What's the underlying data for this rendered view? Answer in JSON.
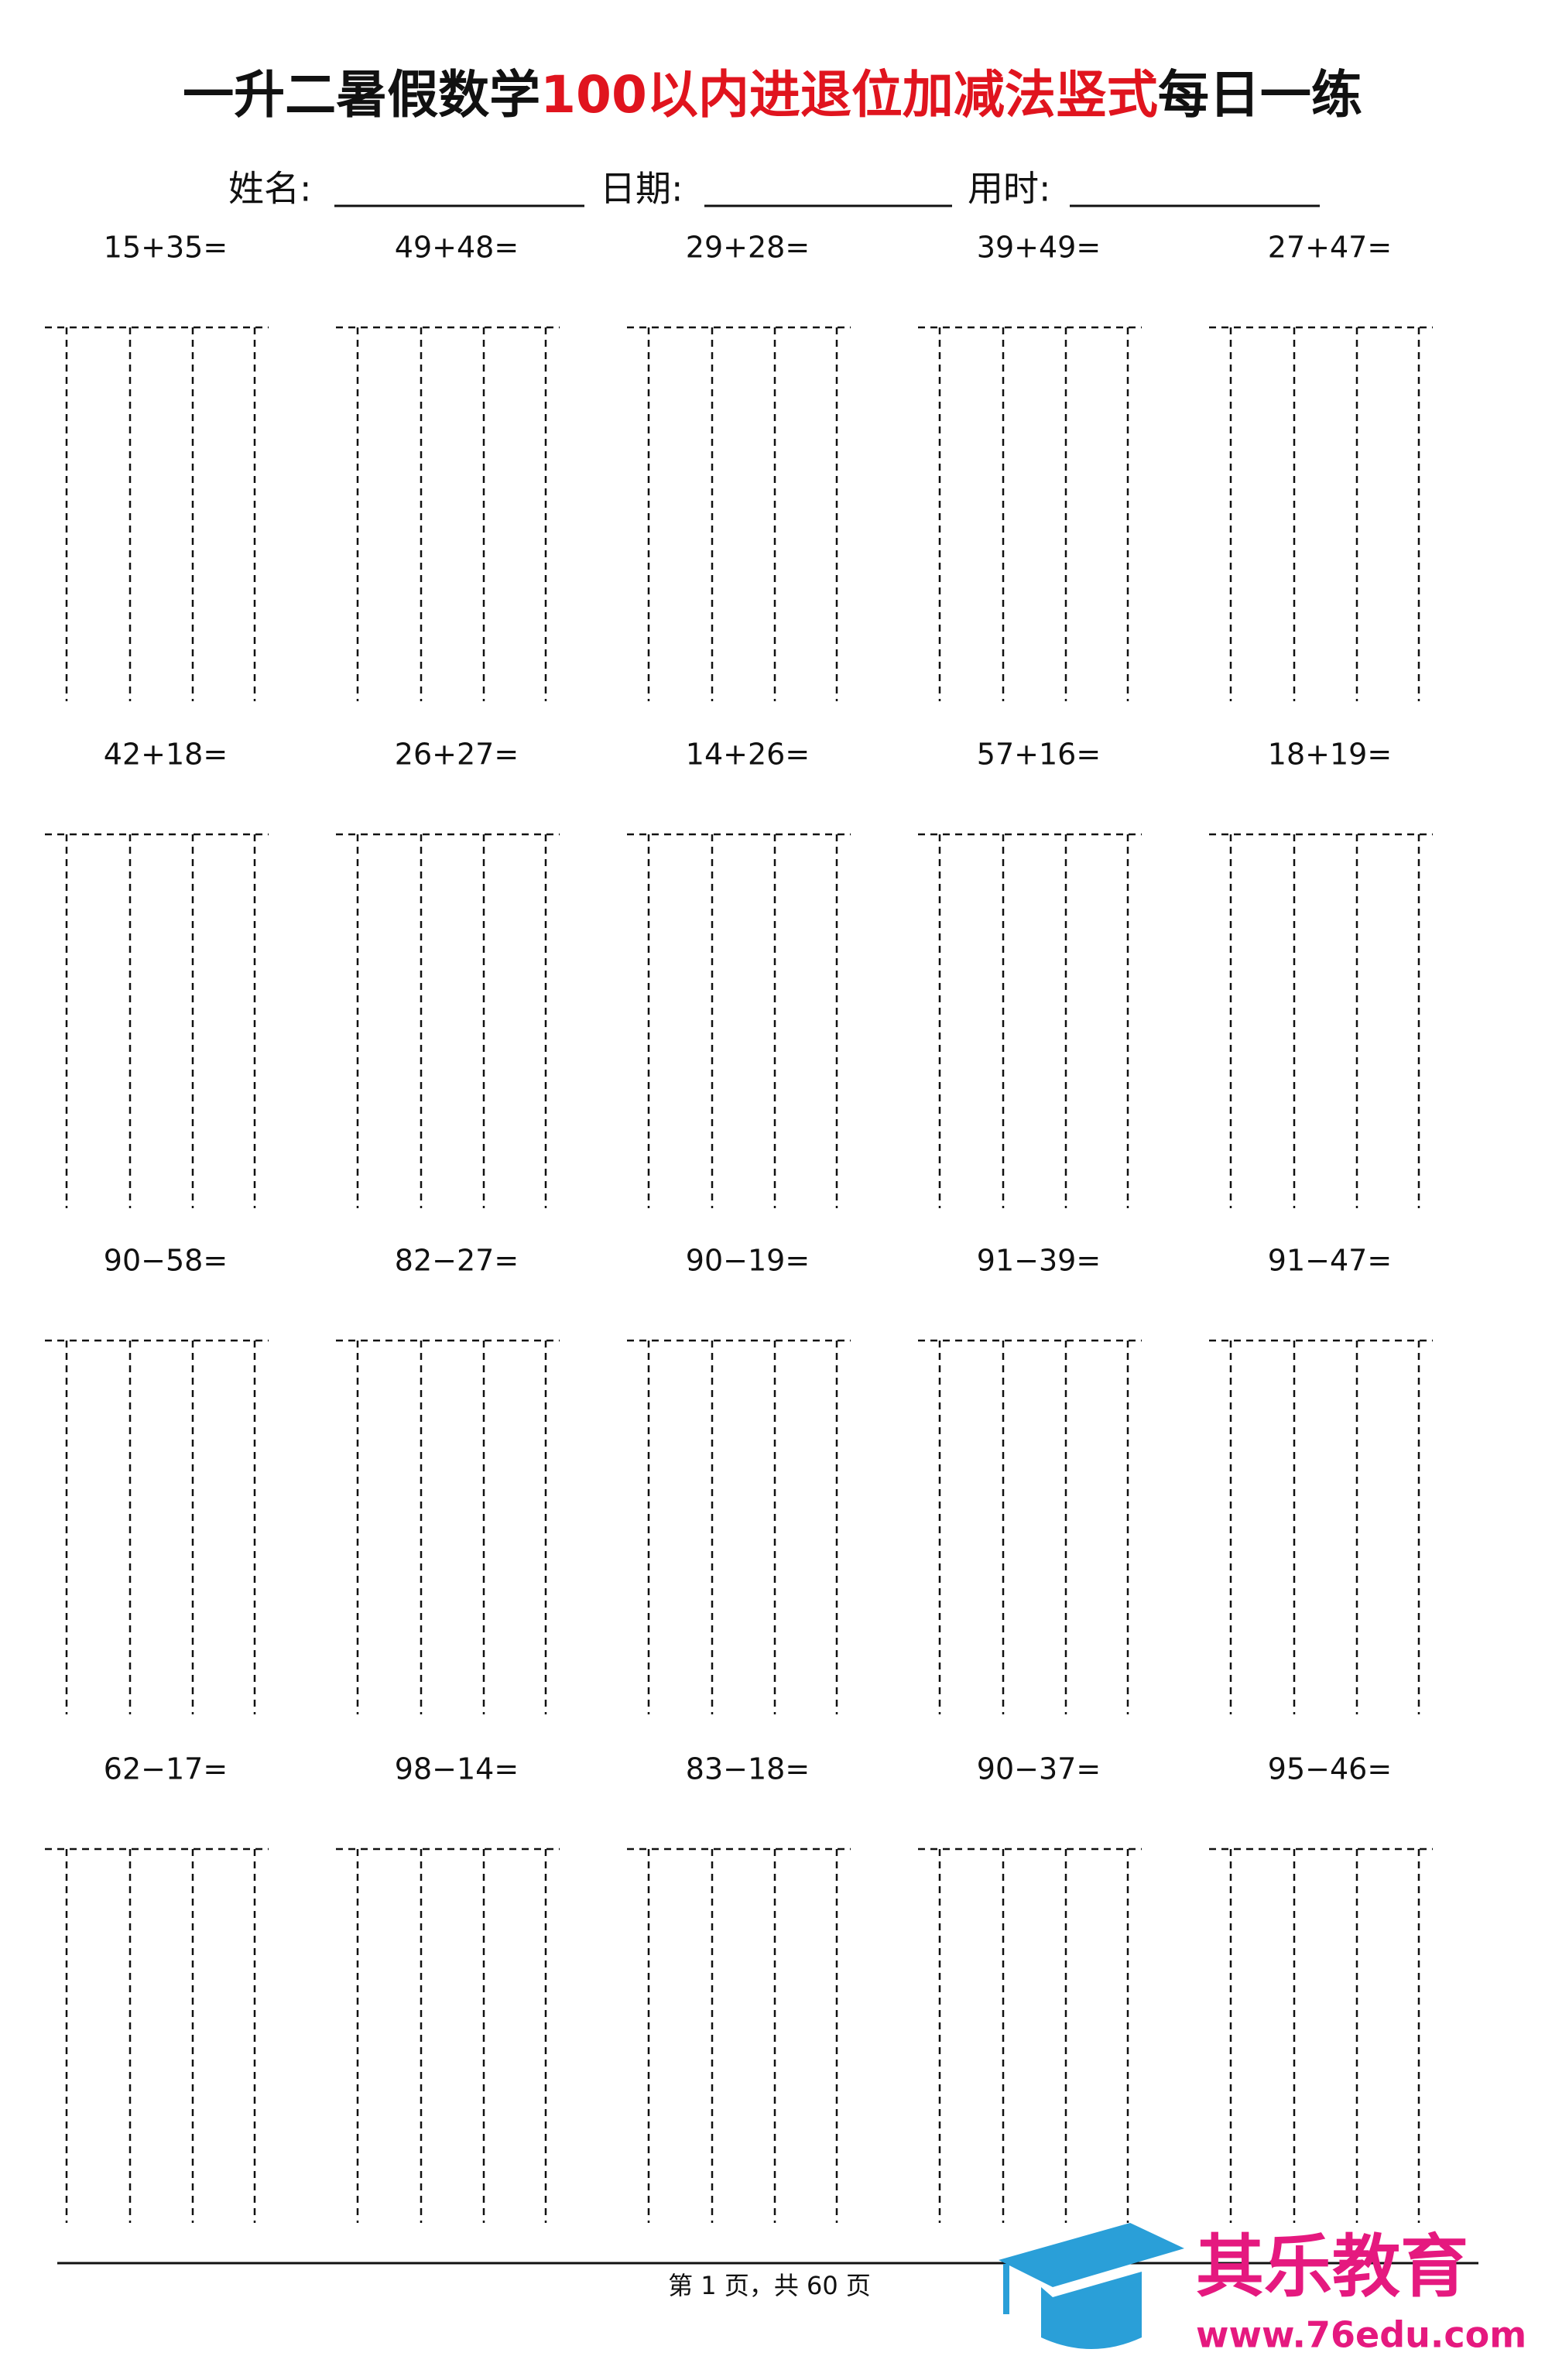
{
  "header": {
    "title_parts": [
      "一升二暑假数学",
      "100以内进退位加减法竖式",
      "每日一练"
    ],
    "fields": [
      "姓名:",
      "日期:",
      "用时:"
    ]
  },
  "problems": [
    "15+35=",
    "49+48=",
    "29+28=",
    "39+49=",
    "27+47=",
    "42+18=",
    "26+27=",
    "14+26=",
    "57+16=",
    "18+19=",
    "90−58=",
    "82−27=",
    "90−19=",
    "91−39=",
    "91−47=",
    "62−17=",
    "98−14=",
    "83−18=",
    "90−37=",
    "95−46="
  ],
  "footer": {
    "page": "第 1 页，共 60 页"
  },
  "logo": {
    "name": "其乐教育",
    "url": "www.76edu.com"
  }
}
